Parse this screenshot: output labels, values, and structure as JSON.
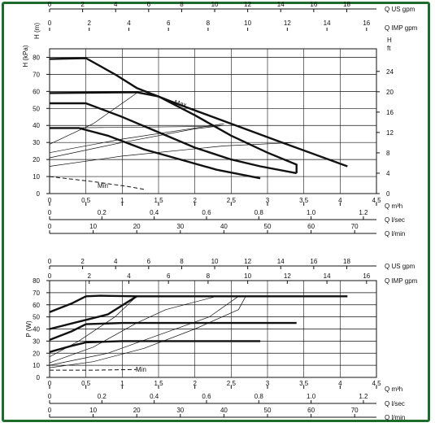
{
  "frame_color": "#1e6b2e",
  "curve_color": "#111111",
  "chart_data": [
    {
      "type": "line",
      "ylabel": "H (kPa)",
      "ylabel_right": "H (m)",
      "ylabel_right_ft": "H\nft",
      "ylim": [
        0,
        85
      ],
      "yticks": [
        0,
        10,
        20,
        30,
        40,
        50,
        60,
        70,
        80
      ],
      "yticks_ft": [
        0,
        4,
        8,
        12,
        16,
        20,
        24
      ],
      "grid": true,
      "x_axes": [
        {
          "label": "Q US gpm",
          "ticks": [
            "0",
            "2",
            "4",
            "6",
            "8",
            "10",
            "12",
            "14",
            "16",
            "18"
          ],
          "max": 19.8
        },
        {
          "label": "Q IMP gpm",
          "ticks": [
            "0",
            "2",
            "4",
            "6",
            "8",
            "10",
            "12",
            "14",
            "16"
          ],
          "max": 16.5
        },
        {
          "label": "Q m³h",
          "ticks": [
            "0",
            "0,5",
            "1",
            "1,5",
            "2",
            "2,5",
            "3",
            "3,5",
            "4",
            "4,5"
          ],
          "max": 4.5
        },
        {
          "label": "Q l/sec",
          "ticks": [
            "0",
            "0.2",
            "0.4",
            "0.6",
            "0.8",
            "1.0",
            "1.2"
          ],
          "max": 1.25
        },
        {
          "label": "Q l/min",
          "ticks": [
            "0",
            "10",
            "20",
            "30",
            "40",
            "50",
            "60",
            "70"
          ],
          "max": 75
        }
      ],
      "annotations": [
        "Max",
        "Min"
      ],
      "series": [
        {
          "values": [
            [
              0,
              79
            ],
            [
              0.5,
              79.5
            ],
            [
              0.9,
              70
            ],
            [
              1.2,
              62
            ],
            [
              1.8,
              52
            ],
            [
              2.5,
              41
            ],
            [
              3.2,
              30
            ],
            [
              4.1,
              16
            ]
          ]
        },
        {
          "values": [
            [
              0,
              59
            ],
            [
              1.2,
              59.5
            ],
            [
              1.5,
              57
            ],
            [
              2,
              46
            ],
            [
              2.5,
              34
            ],
            [
              3,
              24
            ],
            [
              3.4,
              17
            ],
            [
              3.4,
              12
            ]
          ]
        },
        {
          "values": [
            [
              0,
              53
            ],
            [
              0.5,
              53
            ],
            [
              1,
              45
            ],
            [
              1.5,
              36
            ],
            [
              2,
              27
            ],
            [
              2.5,
              20
            ],
            [
              2.9,
              16
            ],
            [
              3.4,
              12
            ]
          ]
        },
        {
          "values": [
            [
              0,
              38.5
            ],
            [
              0.4,
              38.5
            ],
            [
              0.8,
              34
            ],
            [
              1.3,
              26
            ],
            [
              1.8,
              20
            ],
            [
              2.3,
              14
            ],
            [
              2.9,
              9
            ]
          ]
        },
        {
          "values": [
            [
              0,
              10
            ],
            [
              0.6,
              7
            ],
            [
              1.1,
              4
            ],
            [
              1.3,
              2.5
            ]
          ]
        }
      ],
      "thin_lines": [
        {
          "values": [
            [
              0,
              29
            ],
            [
              0.6,
              41
            ],
            [
              1.2,
              59
            ]
          ]
        },
        {
          "values": [
            [
              0,
              21
            ],
            [
              1,
              30
            ],
            [
              2,
              38
            ],
            [
              2.4,
              40
            ]
          ]
        },
        {
          "values": [
            [
              0,
              24
            ],
            [
              1,
              32
            ],
            [
              2.4,
              41
            ]
          ]
        },
        {
          "values": [
            [
              0,
              16
            ],
            [
              1,
              22
            ],
            [
              2.4,
              28
            ],
            [
              3.4,
              30
            ]
          ]
        },
        {
          "values": [
            [
              0.1,
              38.5
            ],
            [
              2.3,
              39.5
            ]
          ]
        }
      ]
    },
    {
      "type": "line",
      "ylabel": "P (W)",
      "ylim": [
        0,
        80
      ],
      "yticks": [
        0,
        10,
        20,
        30,
        40,
        50,
        60,
        70,
        80
      ],
      "grid": true,
      "x_axes": [
        {
          "label": "Q US gpm",
          "ticks": [
            "0",
            "2",
            "4",
            "6",
            "8",
            "10",
            "12",
            "14",
            "16",
            "18"
          ],
          "max": 19.8
        },
        {
          "label": "Q IMP gpm",
          "ticks": [
            "0",
            "2",
            "4",
            "6",
            "8",
            "10",
            "12",
            "14",
            "16"
          ],
          "max": 16.5
        },
        {
          "label": "Q m³h",
          "ticks": [
            "0",
            "0,5",
            "1",
            "1,5",
            "2",
            "2,5",
            "3",
            "3,5",
            "4",
            "4,5"
          ],
          "max": 4.5
        },
        {
          "label": "Q l/sec",
          "ticks": [
            "0",
            "0.2",
            "0.4",
            "0.6",
            "0.8",
            "1.0",
            "1.2"
          ],
          "max": 1.25
        },
        {
          "label": "Q l/min",
          "ticks": [
            "0",
            "10",
            "20",
            "30",
            "40",
            "50",
            "60",
            "70"
          ],
          "max": 75
        }
      ],
      "annotations": [
        "Min"
      ],
      "series": [
        {
          "values": [
            [
              0,
              54
            ],
            [
              0.3,
              61
            ],
            [
              0.5,
              67
            ],
            [
              0.7,
              67.5
            ],
            [
              1.2,
              67
            ],
            [
              2.5,
              67
            ],
            [
              4.1,
              67
            ]
          ]
        },
        {
          "values": [
            [
              0,
              40
            ],
            [
              0.4,
              46
            ],
            [
              0.8,
              52
            ],
            [
              1.2,
              67
            ]
          ]
        },
        {
          "values": [
            [
              0,
              31
            ],
            [
              0.3,
              38
            ],
            [
              0.5,
              44
            ],
            [
              1,
              45
            ],
            [
              2,
              45
            ],
            [
              3.4,
              45
            ]
          ]
        },
        {
          "values": [
            [
              0,
              21
            ],
            [
              0.3,
              26
            ],
            [
              0.5,
              29
            ],
            [
              1,
              30
            ],
            [
              2,
              30
            ],
            [
              2.9,
              30
            ]
          ]
        },
        {
          "values": [
            [
              0,
              6
            ],
            [
              0.6,
              6
            ],
            [
              1.2,
              6.5
            ]
          ]
        }
      ],
      "thin_lines": [
        {
          "values": [
            [
              0,
              12
            ],
            [
              0.6,
              25
            ],
            [
              1.2,
              45
            ],
            [
              1.6,
              56
            ],
            [
              2.3,
              67
            ]
          ]
        },
        {
          "values": [
            [
              0,
              10
            ],
            [
              0.8,
              20
            ],
            [
              1.5,
              35
            ],
            [
              2.2,
              50
            ],
            [
              2.6,
              67
            ]
          ]
        },
        {
          "values": [
            [
              0,
              8
            ],
            [
              0.6,
              13
            ],
            [
              1.3,
              24
            ],
            [
              2,
              40
            ],
            [
              2.6,
              56
            ],
            [
              2.7,
              67
            ]
          ]
        },
        {
          "values": [
            [
              0,
              17
            ],
            [
              0.4,
              30
            ],
            [
              0.9,
              50
            ],
            [
              1.2,
              67
            ]
          ]
        }
      ]
    }
  ]
}
